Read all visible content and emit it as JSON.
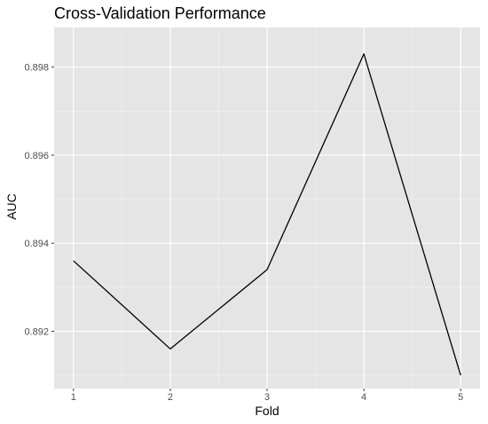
{
  "colors": {
    "panel_background": "#e5e5e5",
    "grid_major": "#ffffff",
    "grid_minor": "#f2f2f2",
    "line": "#000000",
    "tick": "#333333"
  },
  "chart_data": {
    "type": "line",
    "title": "Cross-Validation Performance",
    "xlabel": "Fold",
    "ylabel": "AUC",
    "x": [
      1,
      2,
      3,
      4,
      5
    ],
    "x_ticks": [
      1,
      2,
      3,
      4,
      5
    ],
    "x_tick_labels": [
      "1",
      "2",
      "3",
      "4",
      "5"
    ],
    "y_ticks": [
      0.892,
      0.894,
      0.896,
      0.898
    ],
    "y_tick_labels": [
      "0.892",
      "0.894",
      "0.896",
      "0.898"
    ],
    "xlim": [
      0.8,
      5.2
    ],
    "ylim": [
      0.8907,
      0.8989
    ],
    "grid": true,
    "series": [
      {
        "values": [
          0.8936,
          0.8916,
          0.8934,
          0.8983,
          0.891
        ]
      }
    ]
  }
}
